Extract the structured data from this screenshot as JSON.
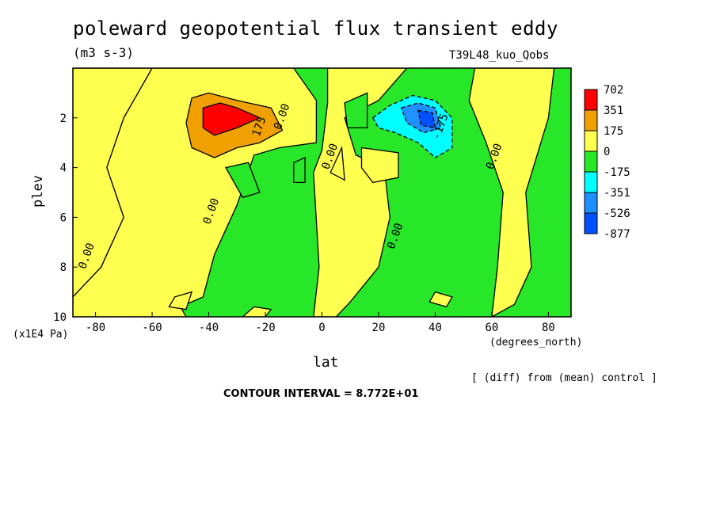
{
  "chart_data": {
    "type": "heatmap",
    "title": "poleward geopotential flux transient eddy",
    "units": "(m3 s-3)",
    "run_label": "T39L48_kuo_Qobs",
    "xlabel": "lat",
    "x_units": "(degrees_north)",
    "ylabel": "plev",
    "y_units": "(x1E4 Pa)",
    "xlim": [
      -88,
      88
    ],
    "ylim": [
      10,
      0
    ],
    "x_ticks": [
      -80,
      -60,
      -40,
      -20,
      0,
      20,
      40,
      60,
      80
    ],
    "y_ticks": [
      2,
      4,
      6,
      8,
      10
    ],
    "legend_levels": [
      "702",
      "351",
      "175",
      "0",
      "-175",
      "-351",
      "-526",
      "-877"
    ],
    "legend_colors": [
      "#ff0000",
      "#f0a000",
      "#ffff50",
      "#28e628",
      "#00ffff",
      "#1e90ff",
      "#0050ff"
    ],
    "diff_note": "[ (diff) from (mean) control ]",
    "contour_interval": "CONTOUR INTERVAL = 8.772E+01",
    "contour_labels": [
      {
        "text": "0.00",
        "lat": -82,
        "plev": 7.6
      },
      {
        "text": "0.00",
        "lat": -38,
        "plev": 5.8
      },
      {
        "text": "0.00",
        "lat": 4,
        "plev": 3.6
      },
      {
        "text": "0.00",
        "lat": 27,
        "plev": 6.8
      },
      {
        "text": "0.00",
        "lat": 62,
        "plev": 3.6
      },
      {
        "text": "0.00",
        "lat": -13,
        "plev": 2.0
      },
      {
        "text": "-175",
        "lat": 43,
        "plev": 2.4
      },
      {
        "text": "175",
        "lat": -21,
        "plev": 2.4
      }
    ],
    "regions": {
      "yellow": [
        [
          [
            -88,
            0
          ],
          [
            -60,
            0
          ],
          [
            -70,
            2
          ],
          [
            -76,
            4
          ],
          [
            -70,
            6
          ],
          [
            -78,
            8
          ],
          [
            -88,
            9.2
          ]
        ],
        [
          [
            -60,
            0
          ],
          [
            -10,
            0
          ],
          [
            -2,
            1.3
          ],
          [
            -2,
            3
          ],
          [
            -15,
            3.2
          ],
          [
            -24,
            3.5
          ],
          [
            -30,
            5.5
          ],
          [
            -38,
            7.5
          ],
          [
            -42,
            9.2
          ],
          [
            -50,
            9.6
          ],
          [
            -48,
            10
          ],
          [
            -88,
            10
          ],
          [
            -88,
            9.2
          ],
          [
            -78,
            8
          ],
          [
            -70,
            6
          ],
          [
            -76,
            4
          ],
          [
            -70,
            2
          ]
        ],
        [
          [
            -18,
            9.7
          ],
          [
            -20,
            10
          ],
          [
            -28,
            10
          ],
          [
            -24,
            9.6
          ]
        ],
        [
          [
            2,
            0
          ],
          [
            30,
            0
          ],
          [
            20,
            1.3
          ],
          [
            8,
            2
          ],
          [
            12,
            3.5
          ],
          [
            22,
            4
          ],
          [
            24,
            6
          ],
          [
            20,
            8
          ],
          [
            10,
            9.4
          ],
          [
            5,
            10
          ],
          [
            -3,
            10
          ],
          [
            -1,
            8
          ],
          [
            -3,
            4.2
          ],
          [
            0,
            3.3
          ],
          [
            2,
            1.4
          ]
        ],
        [
          [
            7,
            3.2
          ],
          [
            8,
            4.5
          ],
          [
            3,
            4.2
          ]
        ],
        [
          [
            54,
            0
          ],
          [
            66,
            0
          ],
          [
            82,
            0
          ],
          [
            80,
            2
          ],
          [
            72,
            5
          ],
          [
            74,
            8
          ],
          [
            68,
            9.5
          ],
          [
            60,
            10
          ],
          [
            62,
            8
          ],
          [
            64,
            5
          ],
          [
            58,
            3
          ],
          [
            52,
            1.3
          ]
        ],
        [
          [
            14,
            3.2
          ],
          [
            27,
            3.4
          ],
          [
            27,
            4.4
          ],
          [
            18,
            4.6
          ],
          [
            14,
            4
          ]
        ],
        [
          [
            -52,
            9.2
          ],
          [
            -46,
            9.0
          ],
          [
            -48,
            9.7
          ],
          [
            -54,
            9.6
          ]
        ],
        [
          [
            40,
            9.0
          ],
          [
            46,
            9.2
          ],
          [
            44,
            9.6
          ],
          [
            38,
            9.4
          ]
        ]
      ],
      "green_extra": [
        [
          [
            -34,
            4.0
          ],
          [
            -26,
            3.8
          ],
          [
            -22,
            5.0
          ],
          [
            -28,
            5.2
          ]
        ],
        [
          [
            -10,
            3.8
          ],
          [
            -6,
            3.6
          ],
          [
            -6,
            4.6
          ],
          [
            -10,
            4.6
          ]
        ],
        [
          [
            8,
            1.4
          ],
          [
            16,
            1.0
          ],
          [
            16,
            2.4
          ],
          [
            9,
            2.4
          ]
        ]
      ],
      "orange": [
        [
          [
            -46,
            1.2
          ],
          [
            -40,
            1.0
          ],
          [
            -30,
            1.3
          ],
          [
            -18,
            1.6
          ],
          [
            -14,
            2.5
          ],
          [
            -22,
            3.0
          ],
          [
            -30,
            3.2
          ],
          [
            -38,
            3.6
          ],
          [
            -46,
            3.2
          ],
          [
            -48,
            2.2
          ]
        ]
      ],
      "red": [
        [
          [
            -42,
            1.6
          ],
          [
            -36,
            1.4
          ],
          [
            -30,
            1.6
          ],
          [
            -22,
            2.0
          ],
          [
            -30,
            2.4
          ],
          [
            -38,
            2.7
          ],
          [
            -42,
            2.4
          ]
        ]
      ],
      "cyan": [
        [
          [
            18,
            2.0
          ],
          [
            24,
            1.5
          ],
          [
            32,
            1.1
          ],
          [
            40,
            1.3
          ],
          [
            46,
            2.0
          ],
          [
            46,
            3.2
          ],
          [
            40,
            3.6
          ],
          [
            34,
            3.0
          ],
          [
            26,
            2.6
          ],
          [
            20,
            2.4
          ]
        ]
      ],
      "blue": [
        [
          [
            28,
            1.6
          ],
          [
            34,
            1.4
          ],
          [
            40,
            1.6
          ],
          [
            42,
            2.4
          ],
          [
            36,
            2.6
          ],
          [
            30,
            2.2
          ]
        ]
      ],
      "dark_blue": [
        [
          [
            34,
            1.7
          ],
          [
            39,
            1.8
          ],
          [
            40,
            2.4
          ],
          [
            35,
            2.3
          ]
        ]
      ]
    }
  }
}
